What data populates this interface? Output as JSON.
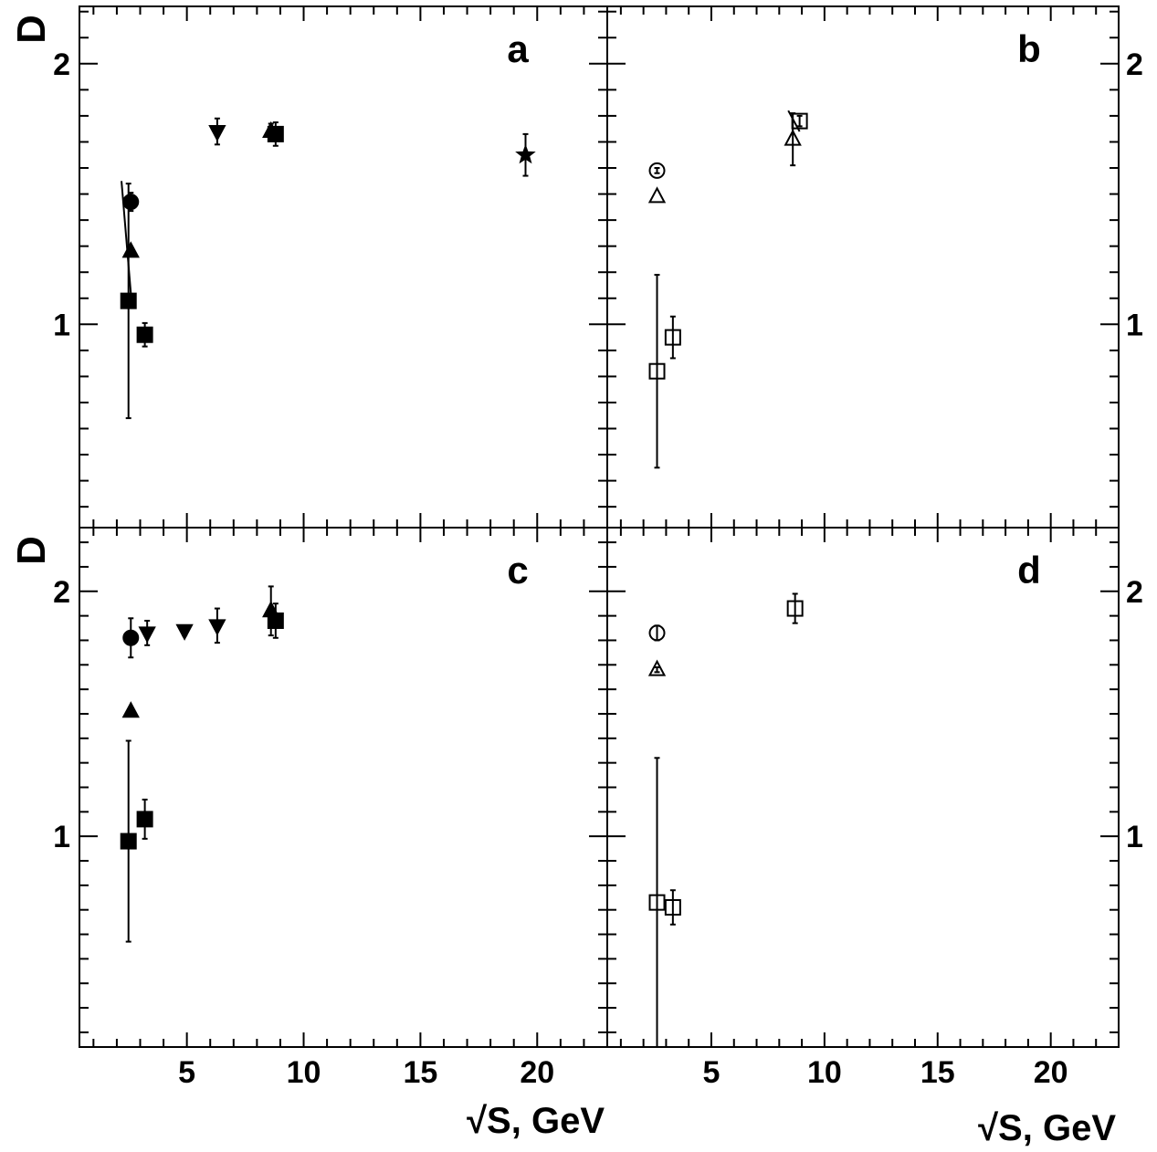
{
  "chart_data": [
    {
      "type": "scatter",
      "panel": "a",
      "ylabel": "D",
      "xlabel": "",
      "xlim": [
        0.4,
        23
      ],
      "ylim": [
        0.22,
        2.22
      ],
      "yticks": [
        1,
        2
      ],
      "xticks": [
        5,
        10,
        15,
        20
      ],
      "y_tick_side": "left",
      "x_tick_labels_shown": false,
      "series": [
        {
          "marker": "circle",
          "filled": true,
          "points": [
            {
              "x": 2.6,
              "y": 1.47,
              "err": 0.035
            }
          ]
        },
        {
          "marker": "triangle-up",
          "filled": true,
          "points": [
            {
              "x": 2.6,
              "y": 1.28,
              "err": 0
            },
            {
              "x": 8.6,
              "y": 1.74,
              "err": 0.03
            }
          ]
        },
        {
          "marker": "square",
          "filled": true,
          "points": [
            {
              "x": 2.5,
              "y": 1.09,
              "err": 0.45
            },
            {
              "x": 3.2,
              "y": 0.96,
              "err": 0.045
            },
            {
              "x": 8.8,
              "y": 1.73,
              "err": 0.045
            }
          ]
        },
        {
          "marker": "triangle-down",
          "filled": true,
          "points": [
            {
              "x": 6.3,
              "y": 1.74,
              "err": 0.05
            }
          ]
        },
        {
          "marker": "star",
          "filled": true,
          "points": [
            {
              "x": 19.5,
              "y": 1.65,
              "err": 0.08
            }
          ]
        }
      ],
      "lines": [
        {
          "x1": 2.2,
          "y1": 1.55,
          "x2": 2.6,
          "y2": 1.12
        }
      ]
    },
    {
      "type": "scatter",
      "panel": "b",
      "ylabel": "",
      "xlabel": "",
      "xlim": [
        0.4,
        23
      ],
      "ylim": [
        0.22,
        2.22
      ],
      "yticks": [
        1,
        2
      ],
      "xticks": [
        5,
        10,
        15,
        20
      ],
      "y_tick_side": "right",
      "x_tick_labels_shown": false,
      "series": [
        {
          "marker": "circle",
          "filled": false,
          "points": [
            {
              "x": 2.6,
              "y": 1.59,
              "err": 0.01
            }
          ]
        },
        {
          "marker": "triangle-up",
          "filled": false,
          "points": [
            {
              "x": 2.6,
              "y": 1.49,
              "err": 0
            },
            {
              "x": 8.6,
              "y": 1.71,
              "err": 0.1
            }
          ]
        },
        {
          "marker": "square",
          "filled": false,
          "points": [
            {
              "x": 2.6,
              "y": 0.82,
              "err": 0.37
            },
            {
              "x": 3.3,
              "y": 0.95,
              "err": 0.08
            },
            {
              "x": 8.9,
              "y": 1.78,
              "err": 0.02
            }
          ]
        }
      ],
      "lines": [
        {
          "x1": 8.4,
          "y1": 1.82,
          "x2": 8.9,
          "y2": 1.74
        }
      ]
    },
    {
      "type": "scatter",
      "panel": "c",
      "ylabel": "D",
      "xlabel": "√S, GeV",
      "xlim": [
        0.4,
        23
      ],
      "ylim": [
        0.14,
        2.26
      ],
      "yticks": [
        1,
        2
      ],
      "xticks": [
        5,
        10,
        15,
        20
      ],
      "y_tick_side": "left",
      "x_tick_labels_shown": true,
      "series": [
        {
          "marker": "circle",
          "filled": true,
          "points": [
            {
              "x": 2.6,
              "y": 1.81,
              "err": 0.08
            }
          ]
        },
        {
          "marker": "triangle-up",
          "filled": true,
          "points": [
            {
              "x": 2.6,
              "y": 1.51,
              "err": 0
            },
            {
              "x": 8.6,
              "y": 1.92,
              "err": 0.1
            }
          ]
        },
        {
          "marker": "square",
          "filled": true,
          "points": [
            {
              "x": 2.5,
              "y": 0.98,
              "err": 0.41
            },
            {
              "x": 3.2,
              "y": 1.07,
              "err": 0.08
            },
            {
              "x": 8.8,
              "y": 1.88,
              "err": 0.07
            }
          ]
        },
        {
          "marker": "triangle-down",
          "filled": true,
          "points": [
            {
              "x": 3.3,
              "y": 1.83,
              "err": 0.05
            },
            {
              "x": 4.9,
              "y": 1.84,
              "err": 0.02
            },
            {
              "x": 6.3,
              "y": 1.86,
              "err": 0.07
            }
          ]
        }
      ],
      "lines": []
    },
    {
      "type": "scatter",
      "panel": "d",
      "ylabel": "",
      "xlabel": "√S, GeV",
      "xlim": [
        0.4,
        23
      ],
      "ylim": [
        0.14,
        2.26
      ],
      "yticks": [
        1,
        2
      ],
      "xticks": [
        5,
        10,
        15,
        20
      ],
      "y_tick_side": "right",
      "x_tick_labels_shown": true,
      "series": [
        {
          "marker": "circle",
          "filled": false,
          "points": [
            {
              "x": 2.6,
              "y": 1.83,
              "err": 0.03
            }
          ]
        },
        {
          "marker": "triangle-up",
          "filled": false,
          "points": [
            {
              "x": 2.6,
              "y": 1.68,
              "err": 0.01
            }
          ]
        },
        {
          "marker": "square",
          "filled": false,
          "points": [
            {
              "x": 2.6,
              "y": 0.73,
              "err": 0.59
            },
            {
              "x": 3.3,
              "y": 0.71,
              "err": 0.07
            },
            {
              "x": 8.7,
              "y": 1.93,
              "err": 0.06
            }
          ]
        }
      ],
      "lines": []
    }
  ]
}
